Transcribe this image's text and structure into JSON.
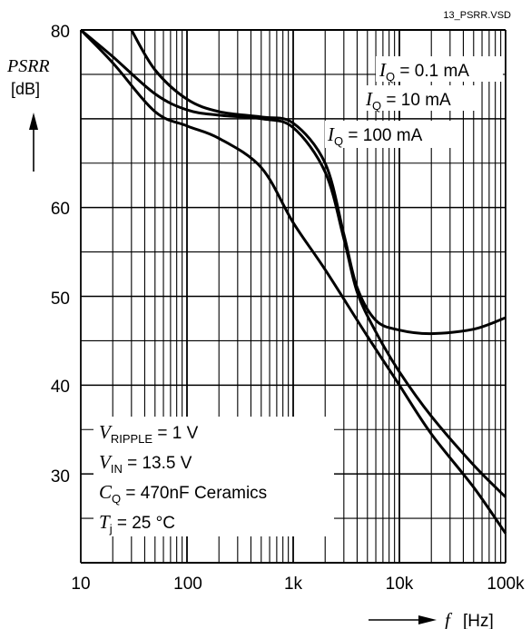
{
  "file_label": "13_PSRR.VSD",
  "y_axis": {
    "symbol": "PSRR",
    "unit": "[dB]",
    "ticks": [
      "80",
      "60",
      "50",
      "40",
      "30"
    ]
  },
  "x_axis": {
    "symbol": "f",
    "unit": "[Hz]",
    "ticks": [
      "10",
      "100",
      "1k",
      "10k",
      "100k"
    ]
  },
  "conditions": {
    "ripple": {
      "sym": "V",
      "sub": "RIPPLE",
      "val": " = 1 V"
    },
    "vin": {
      "sym": "V",
      "sub": "IN",
      "val": "  = 13.5 V"
    },
    "cq": {
      "sym": "C",
      "sub": "Q",
      "val": " = 470nF Ceramics"
    },
    "tj": {
      "sym": "T",
      "sub": "j",
      "val": "  = 25 °C"
    }
  },
  "series_labels": {
    "iq_01": {
      "sym": "I",
      "sub": "Q",
      "val": " = 0.1 mA"
    },
    "iq_10": {
      "sym": "I",
      "sub": "Q",
      "val": " = 10 mA"
    },
    "iq_100": {
      "sym": "I",
      "sub": "Q",
      "val": " = 100 mA"
    }
  },
  "chart_data": {
    "type": "line",
    "x_scale": "log",
    "xlim": [
      10,
      100000
    ],
    "ylim": [
      20,
      80
    ],
    "grid": true,
    "series": [
      {
        "name": "IQ = 0.1 mA",
        "points": [
          [
            30,
            80
          ],
          [
            50,
            75.5
          ],
          [
            100,
            72.2
          ],
          [
            200,
            70.8
          ],
          [
            500,
            70.2
          ],
          [
            1000,
            69.5
          ],
          [
            2000,
            65
          ],
          [
            3000,
            57
          ],
          [
            4000,
            51
          ],
          [
            6000,
            47.3
          ],
          [
            10000,
            46.2
          ],
          [
            20000,
            45.8
          ],
          [
            50000,
            46.3
          ],
          [
            100000,
            47.6
          ]
        ]
      },
      {
        "name": "IQ = 10 mA",
        "points": [
          [
            10,
            80
          ],
          [
            20,
            77
          ],
          [
            50,
            72.8
          ],
          [
            100,
            71
          ],
          [
            200,
            70.4
          ],
          [
            500,
            70
          ],
          [
            1000,
            69
          ],
          [
            2000,
            64
          ],
          [
            3000,
            56.5
          ],
          [
            4000,
            50.5
          ],
          [
            6000,
            46
          ],
          [
            10000,
            41.5
          ],
          [
            20000,
            36.5
          ],
          [
            50000,
            31
          ],
          [
            100000,
            27.4
          ]
        ]
      },
      {
        "name": "IQ = 100 mA",
        "points": [
          [
            10,
            80
          ],
          [
            20,
            76.3
          ],
          [
            50,
            70.8
          ],
          [
            100,
            69.2
          ],
          [
            200,
            67.8
          ],
          [
            500,
            64.5
          ],
          [
            1000,
            58.3
          ],
          [
            2000,
            53
          ],
          [
            5000,
            45.5
          ],
          [
            10000,
            40
          ],
          [
            20000,
            34.5
          ],
          [
            50000,
            28.5
          ],
          [
            100000,
            23.3
          ]
        ]
      }
    ]
  }
}
